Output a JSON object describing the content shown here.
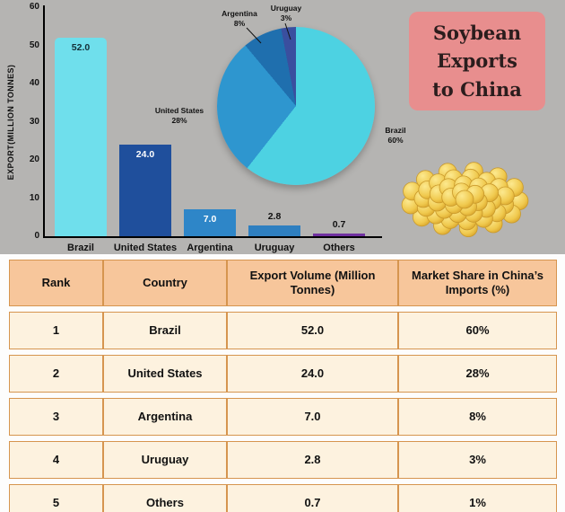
{
  "title_card": {
    "lines": [
      "Soybean",
      "Exports",
      "to China"
    ],
    "bg": "#e88e8e"
  },
  "colors": {
    "chart_background": "#b5b4b2",
    "table_header_bg": "#f7c69b",
    "table_row_bg": "#fdf2df",
    "table_border": "#d6954f"
  },
  "chart_data": [
    {
      "type": "bar",
      "categories": [
        "Brazil",
        "United States",
        "Argentina",
        "Uruguay",
        "Others"
      ],
      "values": [
        52.0,
        24.0,
        7.0,
        2.8,
        0.7
      ],
      "value_labels": [
        "52.0",
        "24.0",
        "7.0",
        "2.8",
        "0.7"
      ],
      "bar_colors": [
        "#6fdfec",
        "#1f4f9c",
        "#2e86c8",
        "#2e7fc0",
        "#7030a0"
      ],
      "title": "",
      "xlabel": "",
      "ylabel": "EXPORT(MILLION TONNES)",
      "ylim": [
        0,
        60
      ],
      "yticks": [
        0,
        10,
        20,
        30,
        40,
        50,
        60
      ],
      "grid": false,
      "legend": false
    },
    {
      "type": "pie",
      "labels": [
        "Brazil",
        "United States",
        "Argentina",
        "Uruguay"
      ],
      "values": [
        60,
        28,
        8,
        3
      ],
      "slice_colors": [
        "#4dd2e2",
        "#2e96cf",
        "#1f6fae",
        "#3a4f9f"
      ],
      "label_format": [
        {
          "name": "Brazil",
          "pct": "60%"
        },
        {
          "name": "United States",
          "pct": "28%"
        },
        {
          "name": "Argentina",
          "pct": "8%"
        },
        {
          "name": "Uruguay",
          "pct": "3%"
        }
      ],
      "legend": false
    }
  ],
  "table": {
    "headers": [
      "Rank",
      "Country",
      "Export Volume (Million Tonnes)",
      "Market Share in China’s Imports (%)"
    ],
    "rows": [
      [
        "1",
        "Brazil",
        "52.0",
        "60%"
      ],
      [
        "2",
        "United States",
        "24.0",
        "28%"
      ],
      [
        "3",
        "Argentina",
        "7.0",
        "8%"
      ],
      [
        "4",
        "Uruguay",
        "2.8",
        "3%"
      ],
      [
        "5",
        "Others",
        "0.7",
        "1%"
      ]
    ]
  }
}
